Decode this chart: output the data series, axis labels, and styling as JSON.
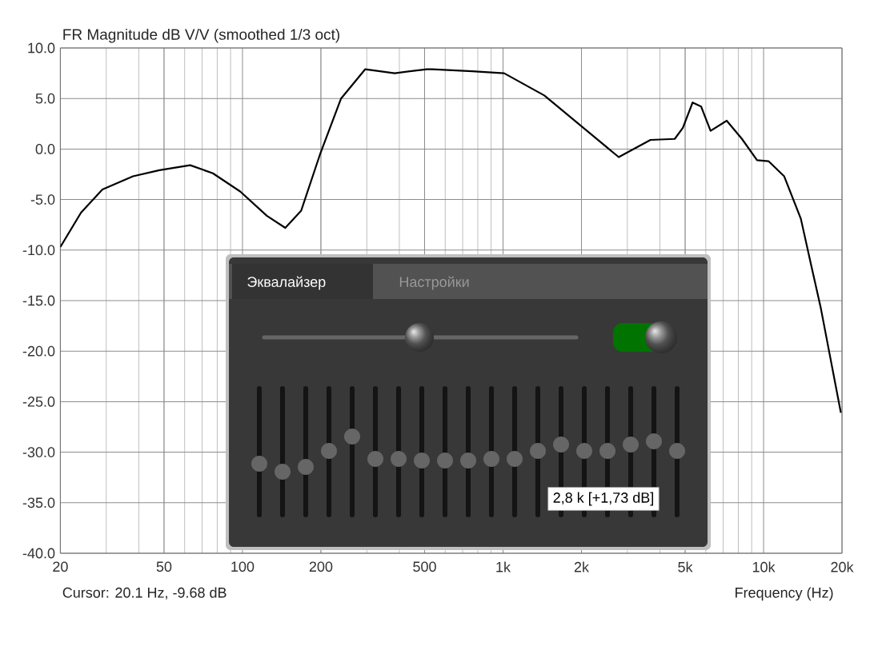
{
  "chart_data": {
    "type": "line",
    "title": "FR Magnitude dB V/V (smoothed 1/3 oct)",
    "xlabel": "Frequency (Hz)",
    "log": "x",
    "grid": true,
    "marker": "none",
    "line_style": "solid",
    "xlim": [
      20,
      20000
    ],
    "ylim": [
      -40,
      10
    ],
    "xticks": [
      20,
      50,
      100,
      200,
      500,
      {
        "value": 1000,
        "label": "1k"
      },
      {
        "value": 2000,
        "label": "2k"
      },
      {
        "value": 5000,
        "label": "5k"
      },
      {
        "value": 10000,
        "label": "10k"
      },
      {
        "value": 20000,
        "label": "20k"
      }
    ],
    "yticks": [
      {
        "value": -40,
        "label": "-40.0"
      },
      {
        "value": -35,
        "label": "-35.0"
      },
      {
        "value": -30,
        "label": "-30.0"
      },
      {
        "value": -25,
        "label": "-25.0"
      },
      {
        "value": -20,
        "label": "-20.0"
      },
      {
        "value": -15,
        "label": "-15.0"
      },
      {
        "value": -10,
        "label": "-10.0"
      },
      {
        "value": -5,
        "label": "-5.0"
      },
      {
        "value": 0,
        "label": "0.0"
      },
      {
        "value": 5,
        "label": "5.0"
      },
      {
        "value": 10,
        "label": "10.0"
      }
    ],
    "annotations": [
      "Cursor: 20.1 Hz, -9.68 dB",
      "Эквалайзер",
      "Настройки",
      "2,8 k [+1,73 dB]"
    ],
    "series": [
      {
        "color": "#000000",
        "x": [
          20,
          24,
          29,
          38,
          48,
          63,
          77,
          98,
          124,
          146,
          168,
          198,
          239,
          296,
          384,
          510,
          534,
          762,
          1010,
          1440,
          2100,
          2780,
          3680,
          4560,
          4900,
          5340,
          5760,
          6260,
          7220,
          8260,
          9440,
          10440,
          12000,
          13900,
          15200,
          16600,
          19800
        ],
        "values": [
          -9.7,
          -6.3,
          -4.0,
          -2.7,
          -2.1,
          -1.6,
          -2.4,
          -4.2,
          -6.6,
          -7.8,
          -6.1,
          -0.6,
          5.0,
          7.9,
          7.5,
          7.9,
          7.9,
          7.7,
          7.5,
          5.3,
          1.8,
          -0.8,
          0.9,
          1.0,
          2.1,
          4.6,
          4.2,
          1.8,
          2.8,
          1.0,
          -1.1,
          -1.2,
          -2.7,
          -6.9,
          -11.4,
          -15.8,
          -26.1
        ]
      }
    ]
  }
}
